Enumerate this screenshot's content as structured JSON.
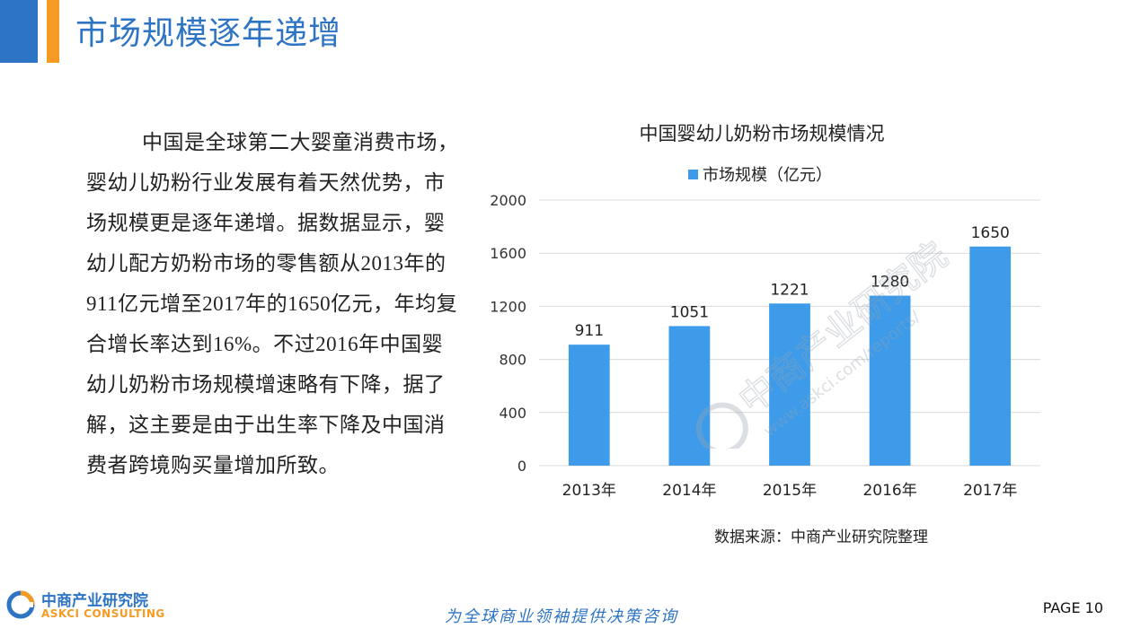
{
  "header": {
    "title": "市场规模逐年递增"
  },
  "body": {
    "paragraph": "中国是全球第二大婴童消费市场，婴幼儿奶粉行业发展有着天然优势，市场规模更是逐年递增。据数据显示，婴幼儿配方奶粉市场的零售额从2013年的911亿元增至2017年的1650亿元，年均复合增长率达到16%。不过2016年中国婴幼儿奶粉市场规模增速略有下降，据了解，这主要是由于出生率下降及中国消费者跨境购买量增加所致。"
  },
  "chart_data": {
    "type": "bar",
    "title": "中国婴幼儿奶粉市场规模情况",
    "categories": [
      "2013年",
      "2014年",
      "2015年",
      "2016年",
      "2017年"
    ],
    "series": [
      {
        "name": "市场规模（亿元）",
        "values": [
          911,
          1051,
          1221,
          1280,
          1650
        ]
      }
    ],
    "ylim": [
      0,
      2000
    ],
    "yticks": [
      0,
      400,
      800,
      1200,
      1600,
      2000
    ],
    "grid": true,
    "legend": "top",
    "color": "#3d9be9",
    "source": "数据来源：中商产业研究院整理"
  },
  "watermark": {
    "text_cn": "中商产业研究院",
    "text_url": "www.askci.com/reports/"
  },
  "footer": {
    "logo_cn": "中商产业研究院",
    "logo_en": "ASKCI CONSULTING",
    "slogan": "为全球商业领袖提供决策咨询",
    "page_label": "PAGE 10"
  },
  "colors": {
    "brand_blue": "#2e74c4",
    "brand_orange": "#f59a23",
    "bar": "#3d9be9"
  }
}
